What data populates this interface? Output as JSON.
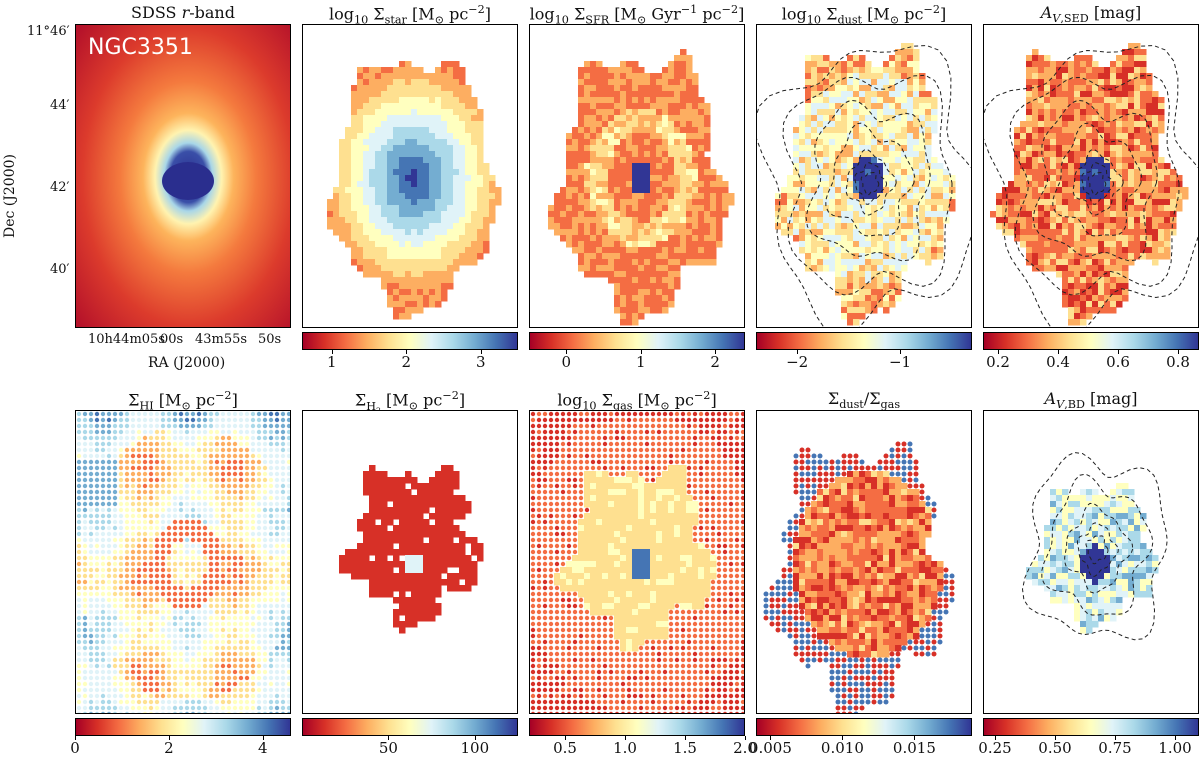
{
  "figure": {
    "galaxy": "NGC3351",
    "colormap": [
      "#a50026",
      "#d73027",
      "#f46d43",
      "#fdae61",
      "#fee090",
      "#ffffbf",
      "#e0f3f8",
      "#abd9e9",
      "#74add1",
      "#4575b4",
      "#313695"
    ]
  },
  "panels": [
    {
      "id": "sdss",
      "title": "SDSS r-band",
      "ticks": []
    },
    {
      "id": "star",
      "title": "log10 Σstar [M⊙ pc−2]",
      "ticks": [
        "1",
        "2",
        "3"
      ],
      "range": [
        0.6,
        3.5
      ],
      "tickvals": [
        1,
        2,
        3
      ]
    },
    {
      "id": "sfr",
      "title": "log10 ΣSFR [M⊙ Gyr−1 pc−2]",
      "ticks": [
        "0",
        "1",
        "2"
      ],
      "range": [
        -0.5,
        2.4
      ],
      "tickvals": [
        0,
        1,
        2
      ]
    },
    {
      "id": "dust",
      "title": "log10 Σdust [M⊙ pc−2]",
      "ticks": [
        "−2",
        "−1"
      ],
      "range": [
        -2.4,
        -0.3
      ],
      "tickvals": [
        -2,
        -1
      ]
    },
    {
      "id": "avsed",
      "title": "AV,SED [mag]",
      "ticks": [
        "0.2",
        "0.4",
        "0.6",
        "0.8"
      ],
      "range": [
        0.15,
        0.87
      ],
      "tickvals": [
        0.2,
        0.4,
        0.6,
        0.8
      ]
    },
    {
      "id": "hi",
      "title": "ΣHI [M⊙ pc−2]",
      "ticks": [
        "0",
        "2",
        "4"
      ],
      "range": [
        0,
        4.6
      ],
      "tickvals": [
        0,
        2,
        4
      ]
    },
    {
      "id": "h2",
      "title": "ΣH2 [M⊙ pc−2]",
      "ticks": [
        "50",
        "100"
      ],
      "range": [
        0,
        125
      ],
      "tickvals": [
        50,
        100
      ]
    },
    {
      "id": "gas",
      "title": "log10 Σgas [M⊙ pc−2]",
      "ticks": [
        "0.5",
        "1.0",
        "1.5",
        "2.0"
      ],
      "range": [
        0.2,
        2.0
      ],
      "tickvals": [
        0.5,
        1.0,
        1.5,
        2.0
      ]
    },
    {
      "id": "dgr",
      "title": "Σdust/Σgas",
      "ticks": [
        "0.005",
        "0.010",
        "0.015"
      ],
      "range": [
        0.004,
        0.019
      ],
      "tickvals": [
        0.005,
        0.01,
        0.015
      ]
    },
    {
      "id": "avbd",
      "title": "AV,BD [mag]",
      "ticks": [
        "0.25",
        "0.50",
        "0.75",
        "1.00"
      ],
      "range": [
        0.2,
        1.1
      ],
      "tickvals": [
        0.25,
        0.5,
        0.75,
        1.0
      ]
    }
  ],
  "axes": {
    "dec_label": "Dec (J2000)",
    "ra_label": "RA (J2000)",
    "dec_ticks": [
      "11°46′",
      "44′",
      "42′",
      "40′"
    ],
    "ra_ticks": [
      "10h44m05s",
      "00s",
      "43m55s",
      "50s"
    ]
  }
}
